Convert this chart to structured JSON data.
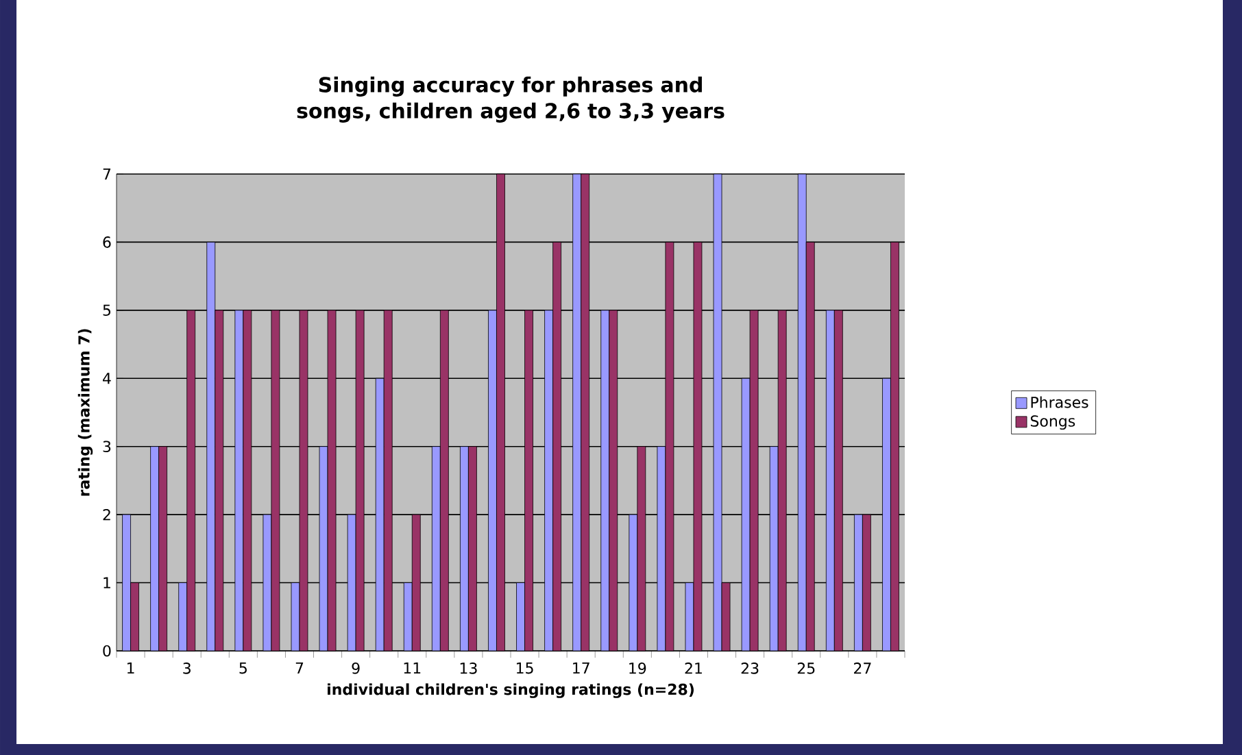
{
  "chart_data": {
    "type": "bar",
    "title": "Singing accuracy for phrases and songs, children aged 2,6 to 3,3 years",
    "xlabel": "individual children's singing ratings (n=28)",
    "ylabel": "rating (maximum 7)",
    "categories": [
      "1",
      null,
      "3",
      null,
      "5",
      null,
      "7",
      null,
      "9",
      null,
      "11",
      null,
      "13",
      null,
      "15",
      null,
      "17",
      null,
      "19",
      null,
      "21",
      null,
      "23",
      null,
      "25",
      null,
      "27",
      null
    ],
    "series": [
      {
        "name": "Phrases",
        "color": "#9999ff",
        "values": [
          2,
          3,
          1,
          6,
          5,
          2,
          1,
          3,
          2,
          4,
          1,
          3,
          3,
          5,
          1,
          5,
          7,
          5,
          2,
          3,
          1,
          7,
          4,
          3,
          7,
          5,
          2,
          4
        ]
      },
      {
        "name": "Songs",
        "color": "#993366",
        "values": [
          1,
          3,
          5,
          5,
          5,
          5,
          5,
          5,
          5,
          5,
          2,
          5,
          3,
          7,
          5,
          6,
          7,
          5,
          3,
          6,
          6,
          1,
          5,
          5,
          6,
          5,
          2,
          6
        ]
      }
    ],
    "ylim": [
      0,
      7
    ],
    "yticks": [
      0,
      1,
      2,
      3,
      4,
      5,
      6,
      7
    ],
    "grid": "y",
    "legend": "right"
  }
}
